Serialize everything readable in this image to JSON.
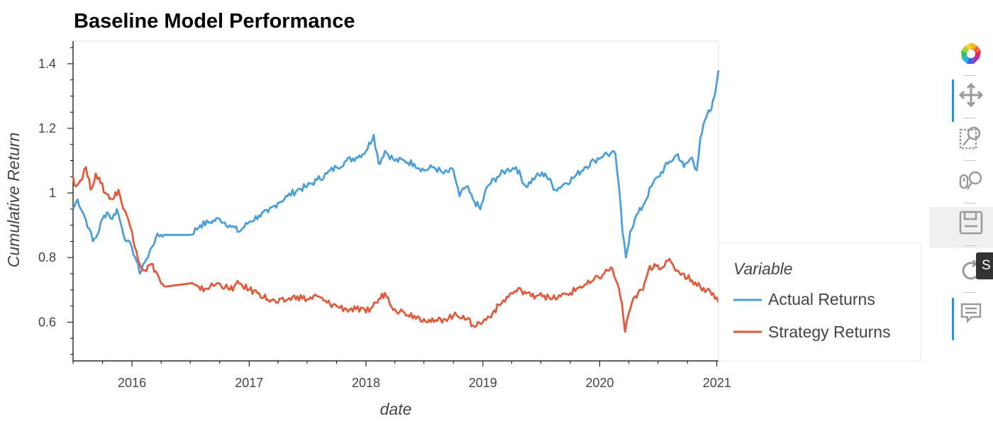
{
  "chart_data": {
    "type": "line",
    "title": "Baseline Model Performance",
    "xlabel": "date",
    "ylabel": "Cumulative Return",
    "xlim": [
      "2015-07-01",
      "2021-01-06"
    ],
    "ylim": [
      0.48,
      1.47
    ],
    "x_ticks": [
      "2016",
      "2017",
      "2018",
      "2019",
      "2020",
      "2021"
    ],
    "y_ticks": [
      "0.6",
      "0.8",
      "1",
      "1.2",
      "1.4"
    ],
    "grid": false,
    "legend": {
      "title": "Variable",
      "placement": "right"
    },
    "series": [
      {
        "name": "Actual Returns",
        "color": "#4c9fd8",
        "points": [
          [
            "2015-07-01",
            0.95
          ],
          [
            "2015-07-15",
            0.98
          ],
          [
            "2015-08-05",
            0.93
          ],
          [
            "2015-08-20",
            0.89
          ],
          [
            "2015-09-01",
            0.85
          ],
          [
            "2015-09-15",
            0.87
          ],
          [
            "2015-10-01",
            0.92
          ],
          [
            "2015-10-15",
            0.94
          ],
          [
            "2015-11-01",
            0.92
          ],
          [
            "2015-11-15",
            0.95
          ],
          [
            "2015-12-01",
            0.89
          ],
          [
            "2015-12-15",
            0.85
          ],
          [
            "2016-01-01",
            0.83
          ],
          [
            "2016-01-15",
            0.79
          ],
          [
            "2016-01-25",
            0.75
          ],
          [
            "2016-02-05",
            0.78
          ],
          [
            "2016-02-20",
            0.8
          ],
          [
            "2016-03-01",
            0.83
          ],
          [
            "2016-03-15",
            0.86
          ],
          [
            "2016-04-01",
            0.87
          ],
          [
            "2016-04-15",
            0.87
          ],
          [
            "2016-07-01",
            0.87
          ],
          [
            "2016-08-01",
            0.9
          ],
          [
            "2016-09-01",
            0.91
          ],
          [
            "2016-10-01",
            0.92
          ],
          [
            "2016-11-01",
            0.9
          ],
          [
            "2016-12-01",
            0.88
          ],
          [
            "2017-01-01",
            0.91
          ],
          [
            "2017-02-01",
            0.93
          ],
          [
            "2017-03-01",
            0.94
          ],
          [
            "2017-04-01",
            0.97
          ],
          [
            "2017-05-01",
            0.99
          ],
          [
            "2017-06-01",
            1.01
          ],
          [
            "2017-07-01",
            1.02
          ],
          [
            "2017-08-01",
            1.04
          ],
          [
            "2017-09-01",
            1.06
          ],
          [
            "2017-10-01",
            1.08
          ],
          [
            "2017-11-01",
            1.1
          ],
          [
            "2017-12-01",
            1.11
          ],
          [
            "2018-01-01",
            1.13
          ],
          [
            "2018-01-25",
            1.18
          ],
          [
            "2018-02-10",
            1.09
          ],
          [
            "2018-03-01",
            1.13
          ],
          [
            "2018-04-01",
            1.1
          ],
          [
            "2018-05-01",
            1.1
          ],
          [
            "2018-06-01",
            1.09
          ],
          [
            "2018-07-01",
            1.07
          ],
          [
            "2018-08-01",
            1.08
          ],
          [
            "2018-09-01",
            1.06
          ],
          [
            "2018-10-01",
            1.07
          ],
          [
            "2018-10-20",
            0.99
          ],
          [
            "2018-11-10",
            1.02
          ],
          [
            "2018-12-01",
            0.98
          ],
          [
            "2018-12-24",
            0.95
          ],
          [
            "2019-01-15",
            1.02
          ],
          [
            "2019-02-15",
            1.05
          ],
          [
            "2019-03-15",
            1.07
          ],
          [
            "2019-04-15",
            1.08
          ],
          [
            "2019-05-15",
            1.02
          ],
          [
            "2019-06-15",
            1.05
          ],
          [
            "2019-07-15",
            1.06
          ],
          [
            "2019-08-15",
            1.01
          ],
          [
            "2019-09-15",
            1.03
          ],
          [
            "2019-10-15",
            1.05
          ],
          [
            "2019-11-15",
            1.08
          ],
          [
            "2019-12-15",
            1.1
          ],
          [
            "2020-01-15",
            1.12
          ],
          [
            "2020-02-19",
            1.12
          ],
          [
            "2020-03-01",
            1.02
          ],
          [
            "2020-03-12",
            0.88
          ],
          [
            "2020-03-23",
            0.8
          ],
          [
            "2020-04-05",
            0.88
          ],
          [
            "2020-04-20",
            0.92
          ],
          [
            "2020-05-15",
            0.96
          ],
          [
            "2020-06-10",
            1.02
          ],
          [
            "2020-07-01",
            1.05
          ],
          [
            "2020-08-01",
            1.09
          ],
          [
            "2020-09-01",
            1.12
          ],
          [
            "2020-09-20",
            1.08
          ],
          [
            "2020-10-15",
            1.11
          ],
          [
            "2020-10-30",
            1.07
          ],
          [
            "2020-11-10",
            1.17
          ],
          [
            "2020-12-01",
            1.24
          ],
          [
            "2020-12-15",
            1.26
          ],
          [
            "2020-12-25",
            1.3
          ],
          [
            "2021-01-06",
            1.38
          ]
        ]
      },
      {
        "name": "Strategy Returns",
        "color": "#e05a3c",
        "points": [
          [
            "2015-07-01",
            1.05
          ],
          [
            "2015-07-10",
            1.02
          ],
          [
            "2015-07-25",
            1.04
          ],
          [
            "2015-08-10",
            1.08
          ],
          [
            "2015-08-25",
            1.01
          ],
          [
            "2015-09-10",
            1.06
          ],
          [
            "2015-09-25",
            1.03
          ],
          [
            "2015-10-10",
            1.0
          ],
          [
            "2015-11-01",
            0.98
          ],
          [
            "2015-11-20",
            1.01
          ],
          [
            "2015-12-05",
            0.95
          ],
          [
            "2015-12-20",
            0.92
          ],
          [
            "2016-01-01",
            0.88
          ],
          [
            "2016-01-15",
            0.82
          ],
          [
            "2016-01-25",
            0.78
          ],
          [
            "2016-02-10",
            0.76
          ],
          [
            "2016-03-01",
            0.78
          ],
          [
            "2016-03-20",
            0.75
          ],
          [
            "2016-04-01",
            0.72
          ],
          [
            "2016-04-15",
            0.71
          ],
          [
            "2016-07-01",
            0.72
          ],
          [
            "2016-08-01",
            0.7
          ],
          [
            "2016-09-01",
            0.71
          ],
          [
            "2016-10-01",
            0.72
          ],
          [
            "2016-11-01",
            0.7
          ],
          [
            "2016-12-01",
            0.72
          ],
          [
            "2017-01-01",
            0.7
          ],
          [
            "2017-02-01",
            0.69
          ],
          [
            "2017-03-01",
            0.67
          ],
          [
            "2017-04-01",
            0.66
          ],
          [
            "2017-05-01",
            0.67
          ],
          [
            "2017-06-01",
            0.68
          ],
          [
            "2017-07-01",
            0.67
          ],
          [
            "2017-08-01",
            0.68
          ],
          [
            "2017-09-01",
            0.66
          ],
          [
            "2017-10-01",
            0.65
          ],
          [
            "2017-11-01",
            0.64
          ],
          [
            "2017-12-01",
            0.64
          ],
          [
            "2018-01-01",
            0.63
          ],
          [
            "2018-02-01",
            0.66
          ],
          [
            "2018-03-01",
            0.69
          ],
          [
            "2018-04-01",
            0.64
          ],
          [
            "2018-05-01",
            0.63
          ],
          [
            "2018-06-01",
            0.62
          ],
          [
            "2018-07-01",
            0.61
          ],
          [
            "2018-08-01",
            0.6
          ],
          [
            "2018-09-01",
            0.61
          ],
          [
            "2018-10-01",
            0.62
          ],
          [
            "2018-11-01",
            0.62
          ],
          [
            "2018-12-01",
            0.59
          ],
          [
            "2019-01-01",
            0.6
          ],
          [
            "2019-02-01",
            0.63
          ],
          [
            "2019-03-01",
            0.66
          ],
          [
            "2019-04-01",
            0.69
          ],
          [
            "2019-05-01",
            0.7
          ],
          [
            "2019-06-01",
            0.68
          ],
          [
            "2019-07-01",
            0.69
          ],
          [
            "2019-08-01",
            0.67
          ],
          [
            "2019-09-01",
            0.68
          ],
          [
            "2019-10-01",
            0.69
          ],
          [
            "2019-11-01",
            0.71
          ],
          [
            "2019-12-01",
            0.72
          ],
          [
            "2020-01-15",
            0.75
          ],
          [
            "2020-02-05",
            0.77
          ],
          [
            "2020-02-25",
            0.72
          ],
          [
            "2020-03-10",
            0.66
          ],
          [
            "2020-03-20",
            0.57
          ],
          [
            "2020-04-05",
            0.64
          ],
          [
            "2020-04-20",
            0.68
          ],
          [
            "2020-05-15",
            0.7
          ],
          [
            "2020-06-01",
            0.76
          ],
          [
            "2020-06-20",
            0.78
          ],
          [
            "2020-07-15",
            0.77
          ],
          [
            "2020-08-01",
            0.79
          ],
          [
            "2020-08-20",
            0.77
          ],
          [
            "2020-09-15",
            0.75
          ],
          [
            "2020-10-15",
            0.73
          ],
          [
            "2020-11-10",
            0.71
          ],
          [
            "2020-12-01",
            0.7
          ],
          [
            "2020-12-20",
            0.69
          ],
          [
            "2021-01-06",
            0.66
          ]
        ]
      }
    ]
  },
  "toolbar": {
    "tools": [
      {
        "name": "bokeh-logo-icon"
      },
      {
        "name": "pan-icon"
      },
      {
        "name": "box-zoom-icon"
      },
      {
        "name": "wheel-zoom-icon"
      },
      {
        "name": "save-icon"
      },
      {
        "name": "reset-icon"
      },
      {
        "name": "hover-icon"
      }
    ],
    "tooltip_text": "S"
  }
}
